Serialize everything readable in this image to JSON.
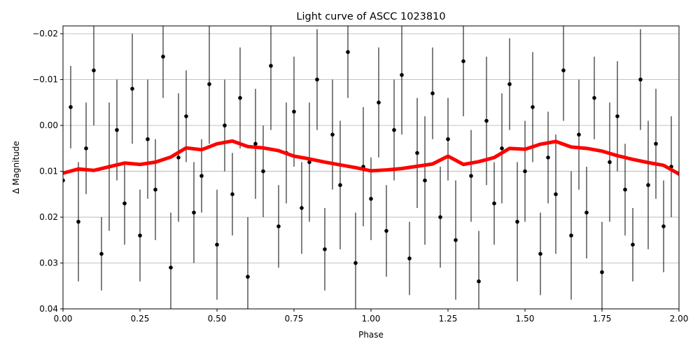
{
  "chart_data": {
    "type": "errorbar",
    "title": "Light curve of ASCC 1023810",
    "xlabel": "Phase",
    "ylabel": "Δ Magnitude",
    "xlim": [
      0,
      2
    ],
    "ylim": [
      0.04,
      -0.0217
    ],
    "xticks": [
      {
        "value": 0,
        "label": "0.00"
      },
      {
        "value": 0.25,
        "label": "0.25"
      },
      {
        "value": 0.5,
        "label": "0.50"
      },
      {
        "value": 0.75,
        "label": "0.75"
      },
      {
        "value": 1,
        "label": "1.00"
      },
      {
        "value": 1.25,
        "label": "1.25"
      },
      {
        "value": 1.5,
        "label": "1.50"
      },
      {
        "value": 1.75,
        "label": "1.75"
      },
      {
        "value": 2,
        "label": "2.00"
      }
    ],
    "yticks": [
      {
        "value": -0.02,
        "label": "−0.02"
      },
      {
        "value": -0.01,
        "label": "−0.01"
      },
      {
        "value": 0,
        "label": "0.00"
      },
      {
        "value": 0.01,
        "label": "0.01"
      },
      {
        "value": 0.02,
        "label": "0.02"
      },
      {
        "value": 0.03,
        "label": "0.03"
      },
      {
        "value": 0.04,
        "label": "0.04"
      }
    ],
    "grid": true,
    "points": {
      "color": "#000000",
      "x": [
        0,
        0.025,
        0.05,
        0.075,
        0.1,
        0.125,
        0.15,
        0.175,
        0.2,
        0.225,
        0.25,
        0.275,
        0.3,
        0.325,
        0.35,
        0.375,
        0.4,
        0.425,
        0.45,
        0.475,
        0.5,
        0.525,
        0.55,
        0.575,
        0.6,
        0.625,
        0.65,
        0.675,
        0.7,
        0.725,
        0.75,
        0.775,
        0.8,
        0.825,
        0.85,
        0.875,
        0.9,
        0.925,
        0.95,
        0.975,
        1,
        1.025,
        1.05,
        1.075,
        1.1,
        1.125,
        1.15,
        1.175,
        1.2,
        1.225,
        1.25,
        1.275,
        1.3,
        1.325,
        1.35,
        1.375,
        1.4,
        1.425,
        1.45,
        1.475,
        1.5,
        1.525,
        1.55,
        1.575,
        1.6,
        1.625,
        1.65,
        1.675,
        1.7,
        1.725,
        1.75,
        1.775,
        1.8,
        1.825,
        1.85,
        1.875,
        1.9,
        1.925,
        1.95,
        1.975
      ],
      "y": [
        0.012,
        -0.004,
        0.021,
        0.005,
        -0.012,
        0.028,
        0.009,
        0.001,
        0.017,
        -0.008,
        0.024,
        0.003,
        0.014,
        -0.015,
        0.031,
        0.007,
        -0.002,
        0.019,
        0.011,
        -0.009,
        0.026,
        0.0,
        0.015,
        -0.006,
        0.033,
        0.004,
        0.01,
        -0.013,
        0.022,
        0.006,
        -0.003,
        0.018,
        0.008,
        -0.01,
        0.027,
        0.002,
        0.013,
        -0.016,
        0.03,
        0.009,
        0.016,
        -0.005,
        0.023,
        0.001,
        -0.011,
        0.029,
        0.006,
        0.012,
        -0.007,
        0.02,
        0.003,
        0.025,
        -0.014,
        0.011,
        0.034,
        -0.001,
        0.017,
        0.005,
        -0.009,
        0.021,
        0.01,
        -0.004,
        0.028,
        0.007,
        0.015,
        -0.012,
        0.024,
        0.002,
        0.019,
        -0.006,
        0.032,
        0.008,
        -0.002,
        0.014,
        0.026,
        -0.01,
        0.013,
        0.004,
        0.022,
        0.009
      ],
      "err": [
        0.011,
        0.009,
        0.013,
        0.01,
        0.012,
        0.008,
        0.014,
        0.011,
        0.009,
        0.012,
        0.01,
        0.013,
        0.011,
        0.009,
        0.012,
        0.014,
        0.01,
        0.011,
        0.008,
        0.013,
        0.012,
        0.01,
        0.009,
        0.011,
        0.013,
        0.012,
        0.01,
        0.014,
        0.009,
        0.011,
        0.012,
        0.01,
        0.013,
        0.011,
        0.009,
        0.012,
        0.014,
        0.01,
        0.011,
        0.013,
        0.009,
        0.012,
        0.01,
        0.011,
        0.013,
        0.008,
        0.012,
        0.014,
        0.01,
        0.011,
        0.009,
        0.013,
        0.012,
        0.01,
        0.011,
        0.014,
        0.009,
        0.012,
        0.01,
        0.013,
        0.011,
        0.012,
        0.009,
        0.01,
        0.013,
        0.011,
        0.014,
        0.012,
        0.01,
        0.009,
        0.011,
        0.013,
        0.012,
        0.01,
        0.008,
        0.011,
        0.014,
        0.012,
        0.01,
        0.011
      ]
    },
    "curve": {
      "color": "#ff0000",
      "x": [
        0,
        0.05,
        0.1,
        0.15,
        0.2,
        0.25,
        0.3,
        0.35,
        0.4,
        0.45,
        0.5,
        0.55,
        0.6,
        0.65,
        0.7,
        0.75,
        0.8,
        0.85,
        0.9,
        0.95,
        1,
        1.05,
        1.1,
        1.15,
        1.2,
        1.25,
        1.3,
        1.35,
        1.4,
        1.45,
        1.5,
        1.55,
        1.6,
        1.65,
        1.7,
        1.75,
        1.8,
        1.85,
        1.9,
        1.95,
        2
      ],
      "y": [
        0.0104,
        0.0095,
        0.0098,
        0.009,
        0.0082,
        0.0085,
        0.008,
        0.0069,
        0.0049,
        0.0053,
        0.004,
        0.0034,
        0.0046,
        0.0049,
        0.0055,
        0.0067,
        0.0073,
        0.008,
        0.0086,
        0.0092,
        0.0099,
        0.0097,
        0.0094,
        0.0089,
        0.0084,
        0.0067,
        0.0085,
        0.0079,
        0.007,
        0.005,
        0.0052,
        0.0041,
        0.0035,
        0.0047,
        0.005,
        0.0056,
        0.0066,
        0.0074,
        0.0081,
        0.0087,
        0.0106
      ]
    }
  }
}
